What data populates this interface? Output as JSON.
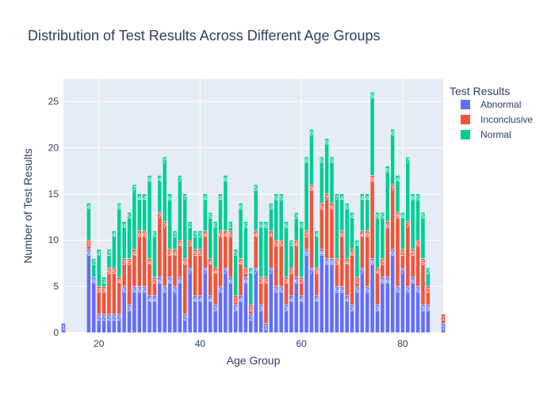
{
  "chart_data": {
    "type": "bar",
    "barmode": "stack",
    "title": "Distribution of Test Results Across Different Age Groups",
    "xlabel": "Age Group",
    "ylabel": "Number of Test Results",
    "xlim": [
      13,
      88
    ],
    "ylim": [
      0,
      27.4
    ],
    "x_ticks": [
      20,
      40,
      60,
      80
    ],
    "y_ticks": [
      0,
      5,
      10,
      15,
      20,
      25
    ],
    "legend_title": "Test Results",
    "legend_position": "right",
    "grid": true,
    "series": [
      {
        "name": "Abnormal",
        "color": "#636efa",
        "points": [
          [
            13,
            1
          ],
          [
            18,
            9
          ],
          [
            19,
            6
          ],
          [
            20,
            2
          ],
          [
            21,
            2
          ],
          [
            22,
            2
          ],
          [
            23,
            2
          ],
          [
            24,
            2
          ],
          [
            25,
            5
          ],
          [
            26,
            3
          ],
          [
            27,
            5
          ],
          [
            28,
            5
          ],
          [
            29,
            5
          ],
          [
            30,
            4
          ],
          [
            31,
            4
          ],
          [
            32,
            6
          ],
          [
            33,
            5
          ],
          [
            34,
            6
          ],
          [
            35,
            5
          ],
          [
            36,
            6
          ],
          [
            37,
            2
          ],
          [
            38,
            7
          ],
          [
            39,
            4
          ],
          [
            40,
            4
          ],
          [
            41,
            7
          ],
          [
            42,
            4
          ],
          [
            43,
            3
          ],
          [
            44,
            5
          ],
          [
            45,
            7
          ],
          [
            46,
            6
          ],
          [
            47,
            3
          ],
          [
            48,
            4
          ],
          [
            49,
            6
          ],
          [
            50,
            2
          ],
          [
            51,
            7
          ],
          [
            52,
            3
          ],
          [
            53,
            1
          ],
          [
            54,
            7
          ],
          [
            55,
            5
          ],
          [
            56,
            5
          ],
          [
            57,
            3
          ],
          [
            58,
            4
          ],
          [
            59,
            6
          ],
          [
            60,
            4
          ],
          [
            61,
            9
          ],
          [
            62,
            7
          ],
          [
            63,
            4
          ],
          [
            64,
            9
          ],
          [
            65,
            8
          ],
          [
            66,
            8
          ],
          [
            67,
            5
          ],
          [
            68,
            5
          ],
          [
            69,
            4
          ],
          [
            70,
            3
          ],
          [
            71,
            5
          ],
          [
            72,
            7
          ],
          [
            73,
            5
          ],
          [
            74,
            8
          ],
          [
            75,
            3
          ],
          [
            76,
            6
          ],
          [
            77,
            6
          ],
          [
            78,
            9
          ],
          [
            79,
            5
          ],
          [
            80,
            7
          ],
          [
            81,
            5
          ],
          [
            82,
            6
          ],
          [
            83,
            5
          ],
          [
            84,
            3
          ],
          [
            85,
            3
          ],
          [
            88,
            1
          ]
        ]
      },
      {
        "name": "Inconclusive",
        "color": "#ef553b",
        "points": [
          [
            18,
            1
          ],
          [
            20,
            3
          ],
          [
            21,
            3
          ],
          [
            22,
            5
          ],
          [
            23,
            5
          ],
          [
            24,
            4
          ],
          [
            25,
            3
          ],
          [
            26,
            5
          ],
          [
            27,
            4
          ],
          [
            28,
            6
          ],
          [
            29,
            6
          ],
          [
            30,
            4
          ],
          [
            31,
            2
          ],
          [
            32,
            7
          ],
          [
            33,
            7
          ],
          [
            34,
            3
          ],
          [
            35,
            4
          ],
          [
            36,
            4
          ],
          [
            37,
            6
          ],
          [
            38,
            3
          ],
          [
            39,
            5
          ],
          [
            40,
            5
          ],
          [
            41,
            4
          ],
          [
            42,
            4
          ],
          [
            43,
            4
          ],
          [
            44,
            6
          ],
          [
            45,
            4
          ],
          [
            46,
            5
          ],
          [
            47,
            1
          ],
          [
            48,
            4
          ],
          [
            49,
            1
          ],
          [
            50,
            1
          ],
          [
            51,
            4
          ],
          [
            52,
            3
          ],
          [
            53,
            5
          ],
          [
            54,
            4
          ],
          [
            55,
            5
          ],
          [
            56,
            5
          ],
          [
            57,
            3
          ],
          [
            58,
            3
          ],
          [
            59,
            4
          ],
          [
            60,
            2
          ],
          [
            61,
            2
          ],
          [
            62,
            9
          ],
          [
            63,
            3
          ],
          [
            64,
            5
          ],
          [
            65,
            7
          ],
          [
            66,
            6
          ],
          [
            67,
            3
          ],
          [
            68,
            6
          ],
          [
            69,
            4
          ],
          [
            70,
            6
          ],
          [
            71,
            1
          ],
          [
            72,
            4
          ],
          [
            73,
            6
          ],
          [
            74,
            9
          ],
          [
            75,
            4
          ],
          [
            76,
            2
          ],
          [
            77,
            6
          ],
          [
            78,
            7
          ],
          [
            79,
            8
          ],
          [
            80,
            2
          ],
          [
            81,
            7
          ],
          [
            82,
            3
          ],
          [
            83,
            5
          ],
          [
            84,
            5
          ],
          [
            85,
            2
          ],
          [
            88,
            1
          ]
        ]
      },
      {
        "name": "Normal",
        "color": "#00cc96",
        "points": [
          [
            18,
            4
          ],
          [
            19,
            2
          ],
          [
            20,
            4
          ],
          [
            21,
            1
          ],
          [
            22,
            2
          ],
          [
            23,
            4
          ],
          [
            24,
            8
          ],
          [
            25,
            4
          ],
          [
            26,
            5
          ],
          [
            27,
            7
          ],
          [
            28,
            4
          ],
          [
            29,
            4
          ],
          [
            30,
            9
          ],
          [
            31,
            5
          ],
          [
            32,
            4
          ],
          [
            33,
            7
          ],
          [
            34,
            6
          ],
          [
            35,
            2
          ],
          [
            36,
            7
          ],
          [
            37,
            7
          ],
          [
            38,
            2
          ],
          [
            39,
            2
          ],
          [
            40,
            2
          ],
          [
            41,
            4
          ],
          [
            42,
            5
          ],
          [
            43,
            5
          ],
          [
            44,
            4
          ],
          [
            45,
            6
          ],
          [
            46,
            1
          ],
          [
            47,
            5
          ],
          [
            48,
            6
          ],
          [
            49,
            5
          ],
          [
            50,
            4
          ],
          [
            51,
            5
          ],
          [
            52,
            6
          ],
          [
            53,
            6
          ],
          [
            54,
            3
          ],
          [
            55,
            5
          ],
          [
            56,
            5
          ],
          [
            57,
            6
          ],
          [
            58,
            3
          ],
          [
            59,
            3
          ],
          [
            60,
            6
          ],
          [
            61,
            8
          ],
          [
            62,
            6
          ],
          [
            63,
            4
          ],
          [
            64,
            5
          ],
          [
            65,
            6
          ],
          [
            66,
            5
          ],
          [
            67,
            7
          ],
          [
            68,
            4
          ],
          [
            69,
            6
          ],
          [
            70,
            4
          ],
          [
            71,
            4
          ],
          [
            72,
            4
          ],
          [
            73,
            4
          ],
          [
            74,
            9
          ],
          [
            75,
            6
          ],
          [
            76,
            5
          ],
          [
            77,
            6
          ],
          [
            78,
            6
          ],
          [
            79,
            4
          ],
          [
            80,
            4
          ],
          [
            81,
            7
          ],
          [
            82,
            6
          ],
          [
            83,
            5
          ],
          [
            84,
            5
          ],
          [
            85,
            2
          ]
        ]
      }
    ]
  }
}
